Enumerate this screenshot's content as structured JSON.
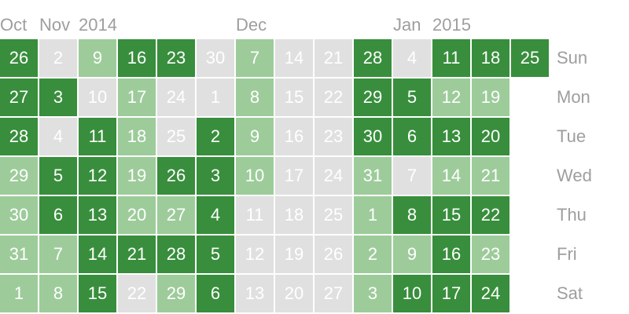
{
  "colors": {
    "empty": "#e0e0e0",
    "light": "#9dcc9a",
    "dark": "#388e3c",
    "label": "#9e9e9e"
  },
  "month_labels": [
    {
      "text": "Oct",
      "week": 0
    },
    {
      "text": "Nov",
      "week": 1
    },
    {
      "text": "2014",
      "week": 2
    },
    {
      "text": "Dec",
      "week": 6
    },
    {
      "text": "Jan",
      "week": 10
    },
    {
      "text": "2015",
      "week": 11
    }
  ],
  "weekdays": [
    "Sun",
    "Mon",
    "Tue",
    "Wed",
    "Thu",
    "Fri",
    "Sat"
  ],
  "weeks": [
    [
      {
        "d": "26",
        "l": 2
      },
      {
        "d": "27",
        "l": 2
      },
      {
        "d": "28",
        "l": 2
      },
      {
        "d": "29",
        "l": 1
      },
      {
        "d": "30",
        "l": 1
      },
      {
        "d": "31",
        "l": 1
      },
      {
        "d": "1",
        "l": 1
      }
    ],
    [
      {
        "d": "2",
        "l": 0
      },
      {
        "d": "3",
        "l": 2
      },
      {
        "d": "4",
        "l": 0
      },
      {
        "d": "5",
        "l": 2
      },
      {
        "d": "6",
        "l": 2
      },
      {
        "d": "7",
        "l": 1
      },
      {
        "d": "8",
        "l": 1
      }
    ],
    [
      {
        "d": "9",
        "l": 1
      },
      {
        "d": "10",
        "l": 0
      },
      {
        "d": "11",
        "l": 2
      },
      {
        "d": "12",
        "l": 2
      },
      {
        "d": "13",
        "l": 2
      },
      {
        "d": "14",
        "l": 2
      },
      {
        "d": "15",
        "l": 2
      }
    ],
    [
      {
        "d": "16",
        "l": 2
      },
      {
        "d": "17",
        "l": 1
      },
      {
        "d": "18",
        "l": 1
      },
      {
        "d": "19",
        "l": 1
      },
      {
        "d": "20",
        "l": 1
      },
      {
        "d": "21",
        "l": 2
      },
      {
        "d": "22",
        "l": 0
      }
    ],
    [
      {
        "d": "23",
        "l": 2
      },
      {
        "d": "24",
        "l": 0
      },
      {
        "d": "25",
        "l": 0
      },
      {
        "d": "26",
        "l": 2
      },
      {
        "d": "27",
        "l": 1
      },
      {
        "d": "28",
        "l": 2
      },
      {
        "d": "29",
        "l": 1
      }
    ],
    [
      {
        "d": "30",
        "l": 0
      },
      {
        "d": "1",
        "l": 0
      },
      {
        "d": "2",
        "l": 2
      },
      {
        "d": "3",
        "l": 2
      },
      {
        "d": "4",
        "l": 2
      },
      {
        "d": "5",
        "l": 2
      },
      {
        "d": "6",
        "l": 2
      }
    ],
    [
      {
        "d": "7",
        "l": 1
      },
      {
        "d": "8",
        "l": 1
      },
      {
        "d": "9",
        "l": 1
      },
      {
        "d": "10",
        "l": 1
      },
      {
        "d": "11",
        "l": 0
      },
      {
        "d": "12",
        "l": 0
      },
      {
        "d": "13",
        "l": 0
      }
    ],
    [
      {
        "d": "14",
        "l": 0
      },
      {
        "d": "15",
        "l": 0
      },
      {
        "d": "16",
        "l": 0
      },
      {
        "d": "17",
        "l": 0
      },
      {
        "d": "18",
        "l": 0
      },
      {
        "d": "19",
        "l": 0
      },
      {
        "d": "20",
        "l": 0
      }
    ],
    [
      {
        "d": "21",
        "l": 0
      },
      {
        "d": "22",
        "l": 0
      },
      {
        "d": "23",
        "l": 0
      },
      {
        "d": "24",
        "l": 0
      },
      {
        "d": "25",
        "l": 0
      },
      {
        "d": "26",
        "l": 0
      },
      {
        "d": "27",
        "l": 0
      }
    ],
    [
      {
        "d": "28",
        "l": 2
      },
      {
        "d": "29",
        "l": 2
      },
      {
        "d": "30",
        "l": 2
      },
      {
        "d": "31",
        "l": 1
      },
      {
        "d": "1",
        "l": 1
      },
      {
        "d": "2",
        "l": 1
      },
      {
        "d": "3",
        "l": 1
      }
    ],
    [
      {
        "d": "4",
        "l": 0
      },
      {
        "d": "5",
        "l": 2
      },
      {
        "d": "6",
        "l": 2
      },
      {
        "d": "7",
        "l": 0
      },
      {
        "d": "8",
        "l": 2
      },
      {
        "d": "9",
        "l": 1
      },
      {
        "d": "10",
        "l": 2
      }
    ],
    [
      {
        "d": "11",
        "l": 2
      },
      {
        "d": "12",
        "l": 1
      },
      {
        "d": "13",
        "l": 2
      },
      {
        "d": "14",
        "l": 1
      },
      {
        "d": "15",
        "l": 2
      },
      {
        "d": "16",
        "l": 2
      },
      {
        "d": "17",
        "l": 2
      }
    ],
    [
      {
        "d": "18",
        "l": 2
      },
      {
        "d": "19",
        "l": 1
      },
      {
        "d": "20",
        "l": 2
      },
      {
        "d": "21",
        "l": 1
      },
      {
        "d": "22",
        "l": 2
      },
      {
        "d": "23",
        "l": 1
      },
      {
        "d": "24",
        "l": 2
      }
    ],
    [
      {
        "d": "25",
        "l": 2
      }
    ]
  ]
}
